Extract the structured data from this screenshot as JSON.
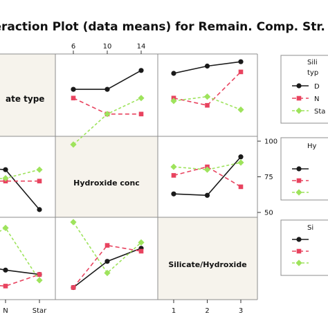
{
  "title": "eraction Plot (data means) for Remain. Comp. Str. (",
  "factors": {
    "silicate": {
      "label": "ate type",
      "levels": [
        "N",
        "Star"
      ]
    },
    "hydroxide": {
      "label": "Hydroxide conc",
      "levels": [
        "6",
        "10",
        "14"
      ]
    },
    "ratio": {
      "label": "Silicate/Hydroxide",
      "levels": [
        "1",
        "2",
        "3"
      ]
    }
  },
  "y_axis_ticks": [
    "100",
    "75",
    "50"
  ],
  "legends": [
    {
      "title": "Sili",
      "subtitle": "typ",
      "entries": [
        "D",
        "N",
        "Sta"
      ]
    },
    {
      "title": "Hy",
      "subtitle": "",
      "entries": [
        "",
        "",
        ""
      ]
    },
    {
      "title": "Si",
      "subtitle": "",
      "entries": [
        "",
        "",
        ""
      ]
    }
  ],
  "colors": {
    "series_1": "#1a1a1a",
    "series_2": "#e8435f",
    "series_3": "#9ee35c",
    "grid": "#8c8c8c",
    "diagonal_bg": "#f6f3ec"
  },
  "chart_data": [
    {
      "type": "line",
      "panel": "row 1, x = Hydroxide conc, trace = Silicate type",
      "x": [
        6,
        10,
        14
      ],
      "ylim": [
        50,
        100
      ],
      "series": [
        {
          "name": "D",
          "values": [
            79,
            79,
            92
          ]
        },
        {
          "name": "N",
          "values": [
            73,
            62,
            62
          ]
        },
        {
          "name": "Sta",
          "values": [
            41,
            62,
            73
          ]
        }
      ]
    },
    {
      "type": "line",
      "panel": "row 1, x = Silicate/Hydroxide, trace = Silicate type",
      "x": [
        1,
        2,
        3
      ],
      "ylim": [
        50,
        100
      ],
      "series": [
        {
          "name": "D",
          "values": [
            90,
            95,
            98
          ]
        },
        {
          "name": "N",
          "values": [
            73,
            68,
            91
          ]
        },
        {
          "name": "Sta",
          "values": [
            71,
            74,
            65
          ]
        }
      ]
    },
    {
      "type": "line",
      "panel": "row 2, x = Silicate type, trace = Hydroxide conc",
      "categories": [
        "D",
        "N",
        "Star"
      ],
      "ylim": [
        50,
        100
      ],
      "series": [
        {
          "values": [
            82,
            80,
            52
          ]
        },
        {
          "values": [
            72,
            72,
            72
          ]
        },
        {
          "values": [
            72,
            74,
            80
          ]
        }
      ]
    },
    {
      "type": "line",
      "panel": "row 2, x = Silicate/Hydroxide, trace = Hydroxide conc",
      "x": [
        1,
        2,
        3
      ],
      "ylim": [
        50,
        100
      ],
      "series": [
        {
          "values": [
            63,
            62,
            89
          ]
        },
        {
          "values": [
            76,
            82,
            68
          ]
        },
        {
          "values": [
            82,
            80,
            85
          ]
        }
      ]
    },
    {
      "type": "line",
      "panel": "row 3, x = Silicate type, trace = Silicate/Hydroxide",
      "categories": [
        "D",
        "N",
        "Star"
      ],
      "ylim": [
        50,
        100
      ],
      "series": [
        {
          "values": [
            72,
            67,
            64
          ]
        },
        {
          "values": [
            58,
            56,
            64
          ]
        },
        {
          "values": [
            80,
            96,
            60
          ]
        }
      ]
    },
    {
      "type": "line",
      "panel": "row 3, x = Hydroxide conc, trace = Silicate/Hydroxide",
      "x": [
        6,
        10,
        14
      ],
      "ylim": [
        50,
        100
      ],
      "series": [
        {
          "values": [
            55,
            73,
            82
          ]
        },
        {
          "values": [
            55,
            84,
            80
          ]
        },
        {
          "values": [
            100,
            65,
            86
          ]
        }
      ]
    }
  ]
}
